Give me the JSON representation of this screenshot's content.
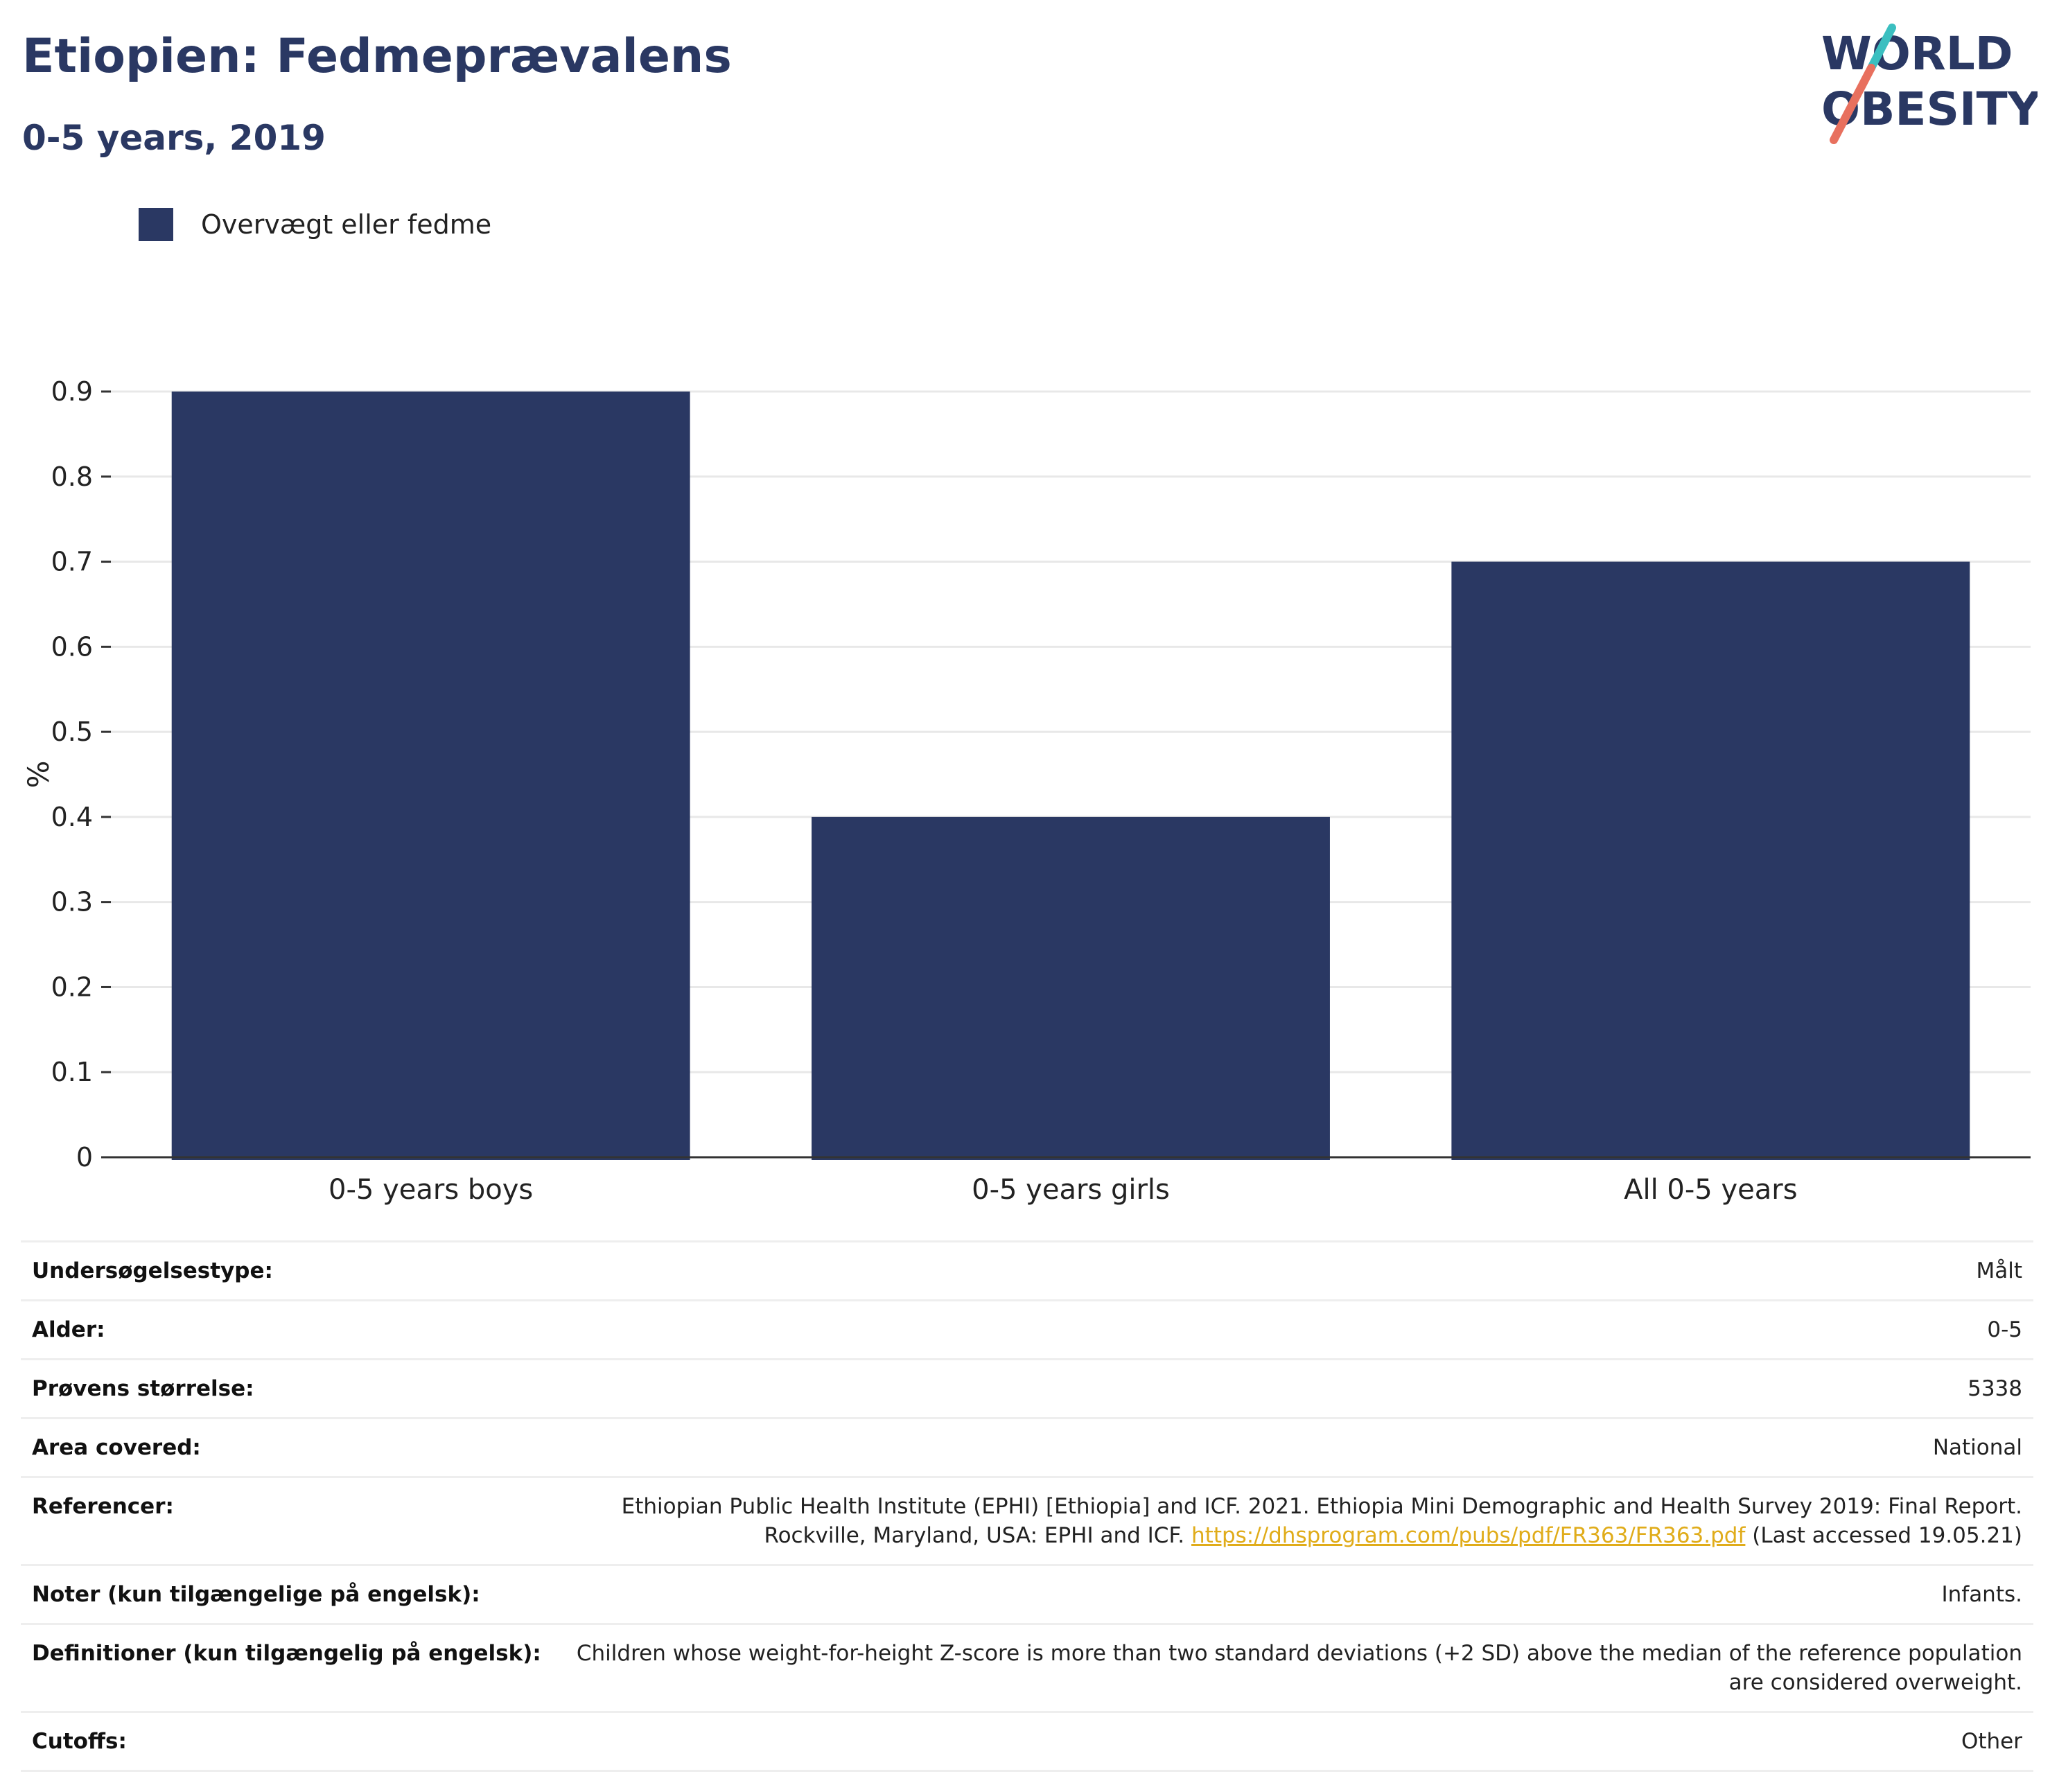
{
  "header": {
    "title": "Etiopien: Fedmeprævalens",
    "subtitle": "0-5 years, 2019"
  },
  "logo": {
    "line1": "WORLD",
    "line2": "OBESITY"
  },
  "legend": {
    "label": "Overvægt eller fedme"
  },
  "colors": {
    "bar": "#2a3863",
    "grid": "#e8e8e8",
    "axis": "#333333",
    "link": "#e0ac1a"
  },
  "chart_data": {
    "type": "bar",
    "categories": [
      "0-5 years boys",
      "0-5 years girls",
      "All 0-5 years"
    ],
    "series": [
      {
        "name": "Overvægt eller fedme",
        "values": [
          0.9,
          0.4,
          0.7
        ]
      }
    ],
    "ylabel": "%",
    "xlabel": "",
    "ylim": [
      0,
      0.9
    ],
    "yticks": [
      "0",
      "0.1",
      "0.2",
      "0.3",
      "0.4",
      "0.5",
      "0.6",
      "0.7",
      "0.8",
      "0.9"
    ],
    "grid": true,
    "legend_position": "top-left"
  },
  "info": {
    "rows": [
      {
        "key": "Undersøgelsestype:",
        "value": "Målt"
      },
      {
        "key": "Alder:",
        "value": "0-5"
      },
      {
        "key": "Prøvens størrelse:",
        "value": "5338"
      },
      {
        "key": "Area covered:",
        "value": "National"
      },
      {
        "key": "Referencer:"
      },
      {
        "key": "Noter (kun tilgængelige på engelsk):",
        "value": "Infants."
      },
      {
        "key": "Definitioner (kun tilgængelig på engelsk):",
        "value": "Children whose weight-for-height Z-score is more than two standard deviations (+2 SD) above the median of the reference population are considered overweight."
      },
      {
        "key": "Cutoffs:",
        "value": "Other"
      }
    ],
    "reference": {
      "text_before": "Ethiopian Public Health Institute (EPHI) [Ethiopia] and ICF. 2021. Ethiopia Mini Demographic and Health Survey 2019: Final Report. Rockville, Maryland, USA: EPHI and ICF. ",
      "link": "https://dhsprogram.com/pubs/pdf/FR363/FR363.pdf",
      "text_after": " (Last accessed 19.05.21)"
    }
  }
}
